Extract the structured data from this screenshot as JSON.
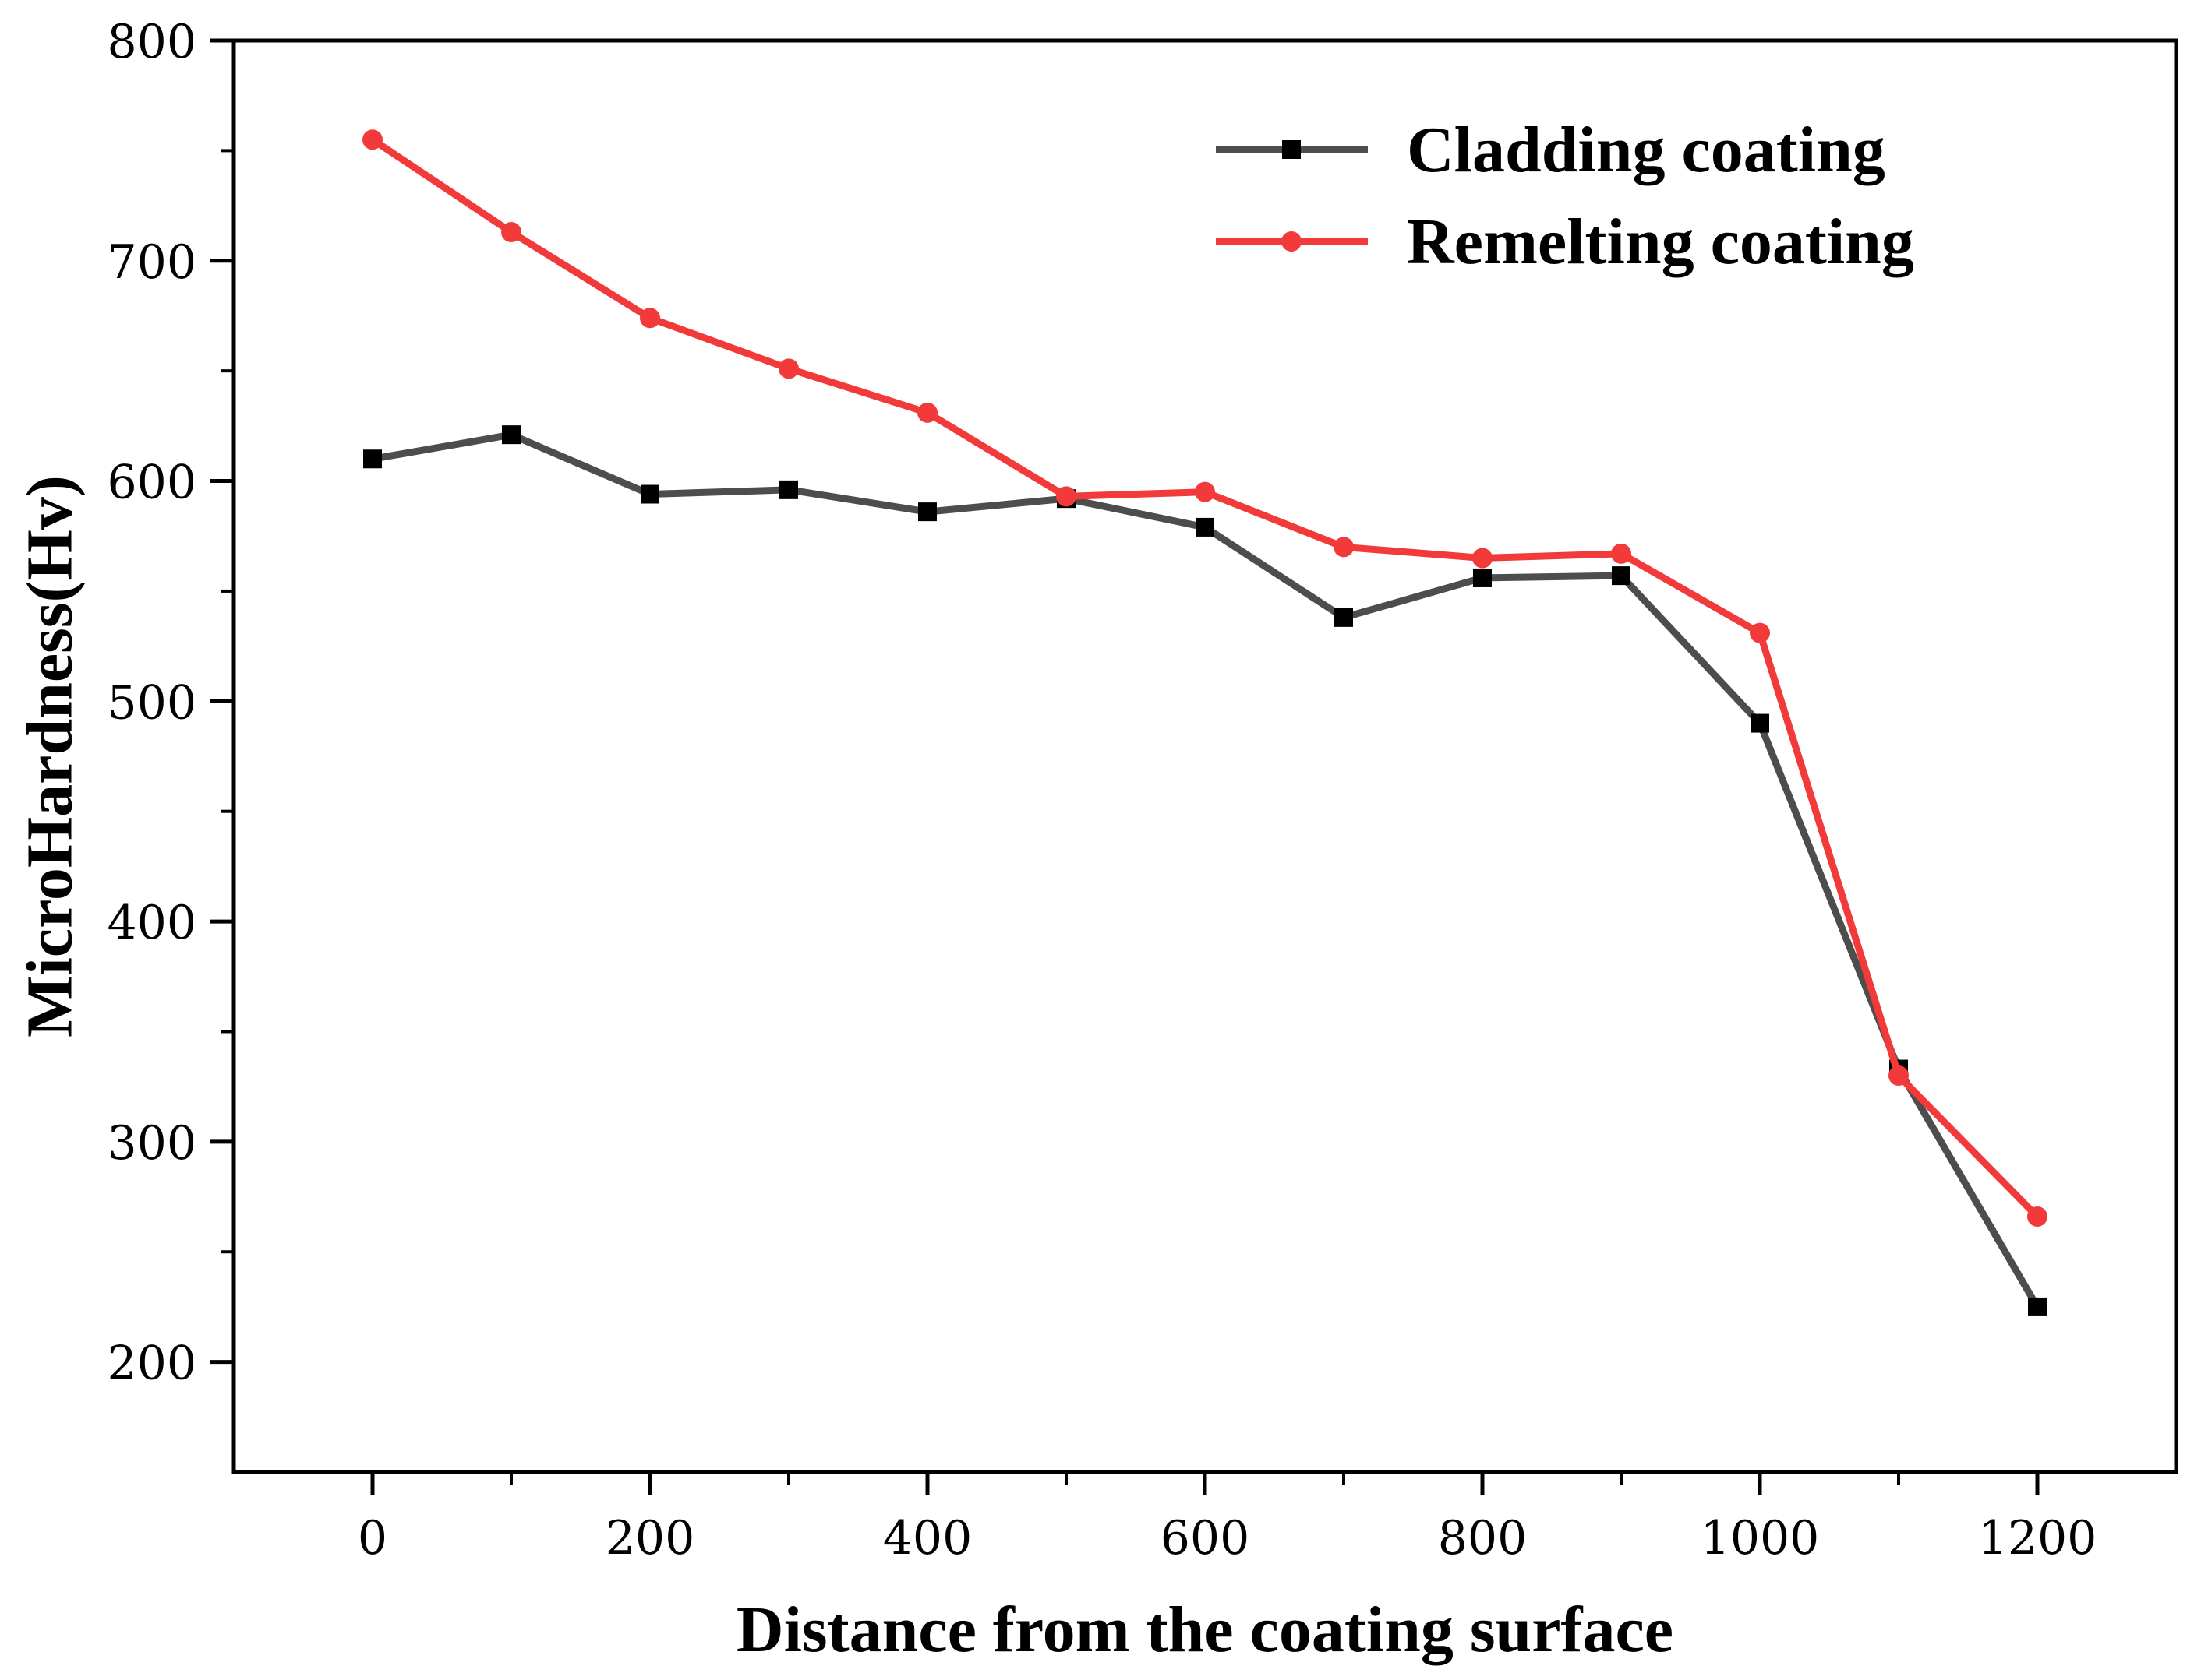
{
  "chart_data": {
    "type": "line",
    "title": "",
    "xlabel": "Distance from the coating surface",
    "ylabel": "MicroHardness(Hv)",
    "xlim": [
      -100,
      1300
    ],
    "ylim": [
      150,
      800
    ],
    "xticks": [
      0,
      200,
      400,
      600,
      800,
      1000,
      1200
    ],
    "yticks": [
      200,
      300,
      400,
      500,
      600,
      700,
      800
    ],
    "x": [
      0,
      100,
      200,
      300,
      400,
      500,
      600,
      700,
      800,
      900,
      1000,
      1100,
      1200
    ],
    "series": [
      {
        "name": "Cladding coating",
        "color": "#4d4d4d",
        "marker": "square",
        "values": [
          610,
          621,
          594,
          596,
          586,
          592,
          579,
          538,
          556,
          557,
          490,
          333,
          225
        ]
      },
      {
        "name": "Remelting coating",
        "color": "#f23a3a",
        "marker": "circle",
        "values": [
          755,
          713,
          674,
          651,
          631,
          593,
          595,
          570,
          565,
          567,
          531,
          330,
          266
        ]
      }
    ],
    "legend_position": "top-right",
    "grid": false
  }
}
